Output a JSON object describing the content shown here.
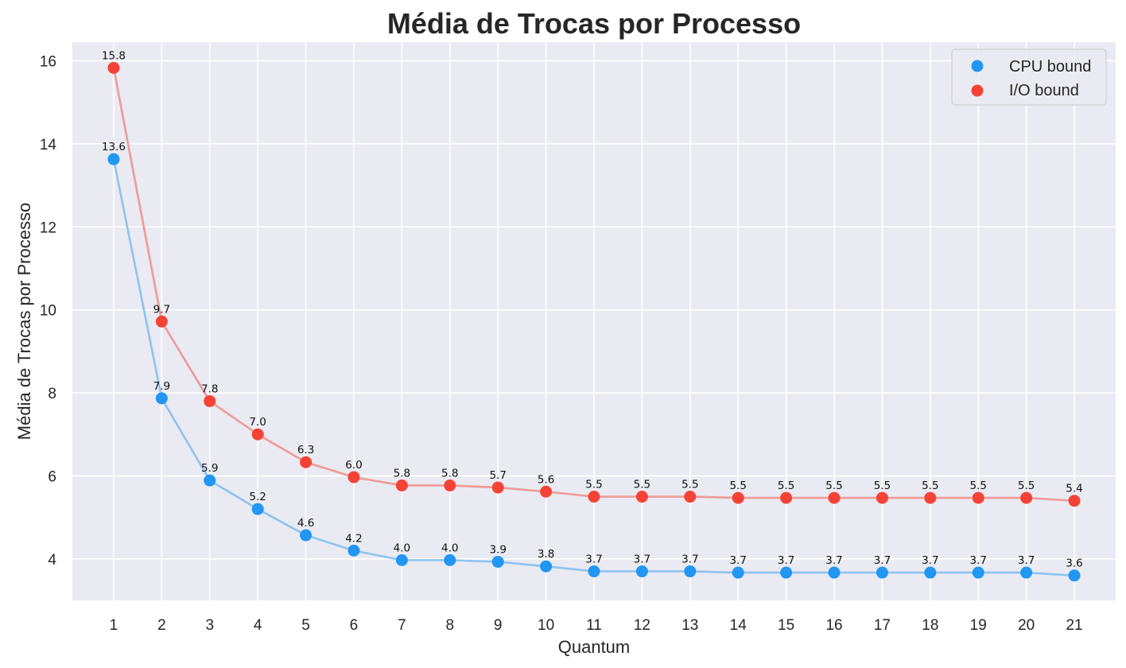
{
  "chart_data": {
    "type": "line",
    "title": "Média de Trocas por Processo",
    "xlabel": "Quantum",
    "ylabel": "Média de Trocas por Processo",
    "x": [
      1,
      2,
      3,
      4,
      5,
      6,
      7,
      8,
      9,
      10,
      11,
      12,
      13,
      14,
      15,
      16,
      17,
      18,
      19,
      20,
      21
    ],
    "xticks": [
      "1",
      "2",
      "3",
      "4",
      "5",
      "6",
      "7",
      "8",
      "9",
      "10",
      "11",
      "12",
      "13",
      "14",
      "15",
      "16",
      "17",
      "18",
      "19",
      "20",
      "21"
    ],
    "ylim": [
      3.0,
      16.45
    ],
    "yticks": [
      4,
      6,
      8,
      10,
      12,
      14,
      16
    ],
    "grid": true,
    "legend_position": "top-right",
    "series": [
      {
        "name": "CPU bound",
        "marker_color": "#2196f3",
        "line_color": "#8cc3f0",
        "values": [
          13.63,
          7.87,
          5.89,
          5.2,
          4.57,
          4.2,
          3.97,
          3.97,
          3.93,
          3.82,
          3.7,
          3.7,
          3.7,
          3.67,
          3.67,
          3.67,
          3.67,
          3.67,
          3.67,
          3.67,
          3.6
        ],
        "labels": [
          "13.6",
          "7.9",
          "5.9",
          "5.2",
          "4.6",
          "4.2",
          "4.0",
          "4.0",
          "3.9",
          "3.8",
          "3.7",
          "3.7",
          "3.7",
          "3.7",
          "3.7",
          "3.7",
          "3.7",
          "3.7",
          "3.7",
          "3.7",
          "3.6"
        ]
      },
      {
        "name": "I/O bound",
        "marker_color": "#f44336",
        "line_color": "#ef9a96",
        "values": [
          15.83,
          9.72,
          7.8,
          7.0,
          6.33,
          5.97,
          5.77,
          5.77,
          5.72,
          5.62,
          5.5,
          5.5,
          5.5,
          5.47,
          5.47,
          5.47,
          5.47,
          5.47,
          5.47,
          5.47,
          5.4
        ],
        "labels": [
          "15.8",
          "9.7",
          "7.8",
          "7.0",
          "6.3",
          "6.0",
          "5.8",
          "5.8",
          "5.7",
          "5.6",
          "5.5",
          "5.5",
          "5.5",
          "5.5",
          "5.5",
          "5.5",
          "5.5",
          "5.5",
          "5.5",
          "5.5",
          "5.4"
        ]
      }
    ]
  },
  "colors": {
    "plot_background": "#eaeaf2",
    "grid": "#ffffff",
    "text": "#262626"
  }
}
